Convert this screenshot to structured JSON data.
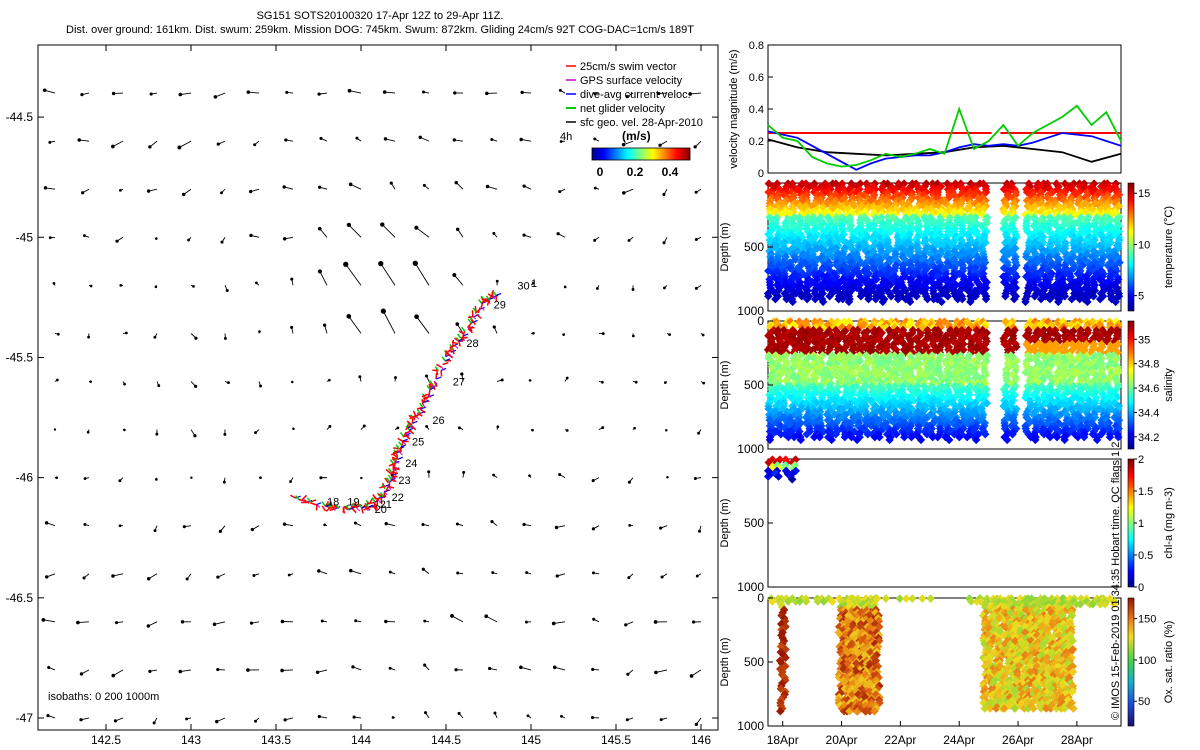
{
  "header": {
    "title_line": "SG151 SOTS20100320 17-Apr 12Z to 29-Apr 11Z.",
    "stats_line": "Dist. over ground: 161km. Dist. swum: 259km. Mission DOG: 745km. Swum: 872km. Gliding 24cm/s 92T COG-DAC=1cm/s 189T"
  },
  "credit": "© IMOS 15-Feb-2019 01:34:35 Hobart time. QC flags 1 2",
  "colors": {
    "swim_vector": "#ff0000",
    "gps_surface": "#cc00cc",
    "dive_avg": "#0000ff",
    "net_glider": "#00cc00",
    "sfc_geo": "#000000"
  },
  "chart_data": [
    {
      "type": "scatter",
      "panel": "map",
      "xlim": [
        142.1,
        146.1
      ],
      "ylim": [
        -47.05,
        -44.2
      ],
      "xticks": [
        "142.5",
        "143",
        "143.5",
        "144",
        "144.5",
        "145",
        "145.5",
        "146"
      ],
      "yticks": [
        "-44.5",
        "-45",
        "-45.5",
        "-46",
        "-46.5",
        "-47"
      ],
      "legend": {
        "placement": "top-right",
        "entries": [
          "25cm/s swim vector",
          "GPS surface velocity",
          "dive-avg current veloc.",
          "net glider velocity",
          "sfc geo. vel. 28-Apr-2010"
        ]
      },
      "colorbar": {
        "label": "(m/s)",
        "ticks": [
          "0",
          "0.2",
          "0.4"
        ],
        "range": [
          0,
          0.5
        ],
        "extra_label": "4h"
      },
      "isobath_label": "isobaths: 0   200  1000m",
      "track": {
        "lon": [
          143.62,
          143.8,
          143.95,
          144.05,
          144.12,
          144.17,
          144.2,
          144.23,
          144.28,
          144.35,
          144.42,
          144.5,
          144.58,
          144.65,
          144.72,
          144.8
        ],
        "lat": [
          -46.09,
          -46.12,
          -46.13,
          -46.12,
          -46.08,
          -46.01,
          -45.94,
          -45.87,
          -45.79,
          -45.72,
          -45.62,
          -45.5,
          -45.43,
          -45.35,
          -45.27,
          -45.24
        ]
      },
      "day_labels": [
        {
          "text": "1",
          "lon": 145.0,
          "lat": -45.19
        },
        {
          "text": "30",
          "lon": 144.92,
          "lat": -45.2
        },
        {
          "text": "29",
          "lon": 144.78,
          "lat": -45.28
        },
        {
          "text": "28",
          "lon": 144.62,
          "lat": -45.44
        },
        {
          "text": "27",
          "lon": 144.54,
          "lat": -45.6
        },
        {
          "text": "26",
          "lon": 144.42,
          "lat": -45.76
        },
        {
          "text": "25",
          "lon": 144.3,
          "lat": -45.85
        },
        {
          "text": "24",
          "lon": 144.26,
          "lat": -45.94
        },
        {
          "text": "23",
          "lon": 144.22,
          "lat": -46.01
        },
        {
          "text": "22",
          "lon": 144.18,
          "lat": -46.08
        },
        {
          "text": "21",
          "lon": 144.11,
          "lat": -46.11
        },
        {
          "text": "20",
          "lon": 144.08,
          "lat": -46.13
        },
        {
          "text": "19",
          "lon": 143.92,
          "lat": -46.1
        },
        {
          "text": "18",
          "lon": 143.8,
          "lat": -46.1
        }
      ]
    },
    {
      "type": "line",
      "panel": "velocity",
      "ylabel": "velocity magnitude (m/s)",
      "ylim": [
        0,
        0.8
      ],
      "yticks": [
        "0",
        "0.2",
        "0.4",
        "0.6",
        "0.8"
      ],
      "xlim_days": [
        17.5,
        29.5
      ],
      "series": [
        {
          "color": "#ff0000",
          "x": [
            17.5,
            25.1
          ],
          "y": [
            0.25,
            0.25
          ]
        },
        {
          "color": "#ff0000",
          "x": [
            25.4,
            29.5
          ],
          "y": [
            0.25,
            0.25
          ]
        },
        {
          "color": "#000000",
          "x": [
            17.5,
            18.5,
            19.5,
            20.5,
            21.5,
            22.5,
            23.5,
            24.5,
            25.5,
            26.5,
            27.5,
            28.5,
            29.5
          ],
          "y": [
            0.21,
            0.16,
            0.13,
            0.12,
            0.11,
            0.12,
            0.13,
            0.16,
            0.17,
            0.15,
            0.13,
            0.07,
            0.12
          ]
        },
        {
          "color": "#0000ff",
          "x": [
            17.5,
            18.0,
            18.5,
            19.0,
            19.5,
            20.0,
            20.5,
            21.0,
            21.5,
            22.0,
            22.5,
            23.0,
            23.5,
            24.0,
            24.5,
            25.0,
            25.5,
            26.0,
            26.5,
            27.0,
            27.5,
            28.0,
            28.5,
            29.0,
            29.5
          ],
          "y": [
            0.26,
            0.24,
            0.22,
            0.17,
            0.12,
            0.07,
            0.02,
            0.06,
            0.09,
            0.1,
            0.11,
            0.11,
            0.13,
            0.16,
            0.18,
            0.17,
            0.18,
            0.17,
            0.19,
            0.22,
            0.25,
            0.24,
            0.23,
            0.2,
            0.17
          ]
        },
        {
          "color": "#00cc00",
          "x": [
            17.5,
            18.0,
            18.5,
            19.0,
            19.5,
            20.0,
            20.5,
            21.0,
            21.5,
            22.0,
            22.5,
            23.0,
            23.5,
            24.0,
            24.5,
            25.0,
            25.5,
            26.0,
            26.5,
            27.0,
            27.5,
            28.0,
            28.5,
            29.0,
            29.5
          ],
          "y": [
            0.3,
            0.22,
            0.2,
            0.1,
            0.06,
            0.04,
            0.05,
            0.08,
            0.12,
            0.1,
            0.12,
            0.15,
            0.12,
            0.4,
            0.15,
            0.2,
            0.3,
            0.17,
            0.25,
            0.3,
            0.35,
            0.42,
            0.3,
            0.38,
            0.2
          ]
        }
      ]
    },
    {
      "type": "scatter",
      "panel": "temperature",
      "ylabel": "Depth (m)",
      "ylim": [
        1000,
        0
      ],
      "yticks": [
        "500",
        "1000"
      ],
      "colorbar_label": "temperature (°C)",
      "colorbar_ticks": [
        "5",
        "10",
        "15"
      ],
      "crange": [
        3.5,
        16
      ],
      "profile_days": [
        17.6,
        17.85,
        18.1,
        18.35,
        18.6,
        18.85,
        19.1,
        19.35,
        19.6,
        19.85,
        20.1,
        20.35,
        20.6,
        20.85,
        21.1,
        21.35,
        21.6,
        21.85,
        22.1,
        22.35,
        22.6,
        22.85,
        23.1,
        23.35,
        23.6,
        23.85,
        24.1,
        24.35,
        24.6,
        24.85,
        25.6,
        25.85,
        26.35,
        26.6,
        26.85,
        27.1,
        27.35,
        27.6,
        27.85,
        28.1,
        28.35,
        28.6,
        28.85,
        29.1,
        29.35
      ]
    },
    {
      "type": "scatter",
      "panel": "salinity",
      "ylabel": "Depth (m)",
      "ylim": [
        1000,
        0
      ],
      "yticks": [
        "0",
        "500",
        "1000"
      ],
      "colorbar_label": "salinity",
      "colorbar_ticks": [
        "34.2",
        "34.4",
        "34.6",
        "34.8",
        "35"
      ],
      "crange": [
        34.1,
        35.15
      ],
      "profile_days": [
        17.6,
        17.85,
        18.1,
        18.35,
        18.6,
        18.85,
        19.1,
        19.35,
        19.6,
        19.85,
        20.1,
        20.35,
        20.6,
        20.85,
        21.1,
        21.35,
        21.6,
        21.85,
        22.1,
        22.35,
        22.6,
        22.85,
        23.1,
        23.35,
        23.6,
        23.85,
        24.1,
        24.35,
        24.6,
        24.85,
        25.6,
        25.85,
        26.35,
        26.6,
        26.85,
        27.1,
        27.35,
        27.6,
        27.85,
        28.1,
        28.35,
        28.6,
        28.85,
        29.1,
        29.35
      ]
    },
    {
      "type": "scatter",
      "panel": "chla",
      "ylabel": "Depth (m)",
      "ylim": [
        1000,
        0
      ],
      "yticks": [
        "500",
        "1000"
      ],
      "colorbar_label": "chl-a (mg m-3)",
      "colorbar_ticks": [
        "0",
        "0.5",
        "1",
        "1.5",
        "2"
      ],
      "crange": [
        0,
        2
      ],
      "profile_days": [
        17.6,
        17.85,
        18.1,
        18.35
      ]
    },
    {
      "type": "scatter",
      "panel": "oxygen",
      "ylabel": "Depth (m)",
      "ylim": [
        1000,
        0
      ],
      "yticks": [
        "0",
        "500",
        "1000"
      ],
      "colorbar_label": "Ox. sat. ratio (%)",
      "colorbar_ticks": [
        "50",
        "100",
        "150"
      ],
      "crange": [
        20,
        175
      ],
      "xticks": [
        "18Apr",
        "20Apr",
        "22Apr",
        "24Apr",
        "26Apr",
        "28Apr"
      ],
      "xtick_days": [
        18,
        20,
        22,
        24,
        26,
        28
      ]
    }
  ]
}
